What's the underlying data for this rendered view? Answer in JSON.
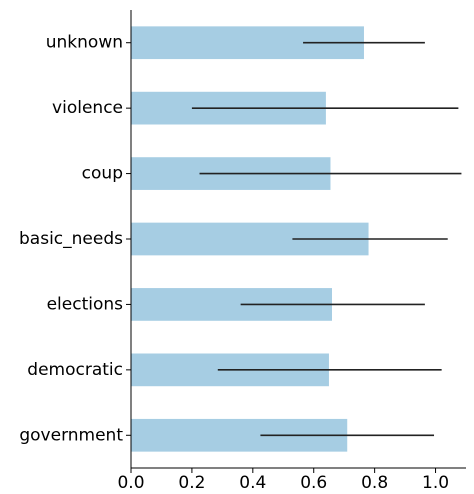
{
  "chart_data": {
    "type": "bar",
    "orientation": "horizontal",
    "categories": [
      "unknown",
      "violence",
      "coup",
      "basic_needs",
      "elections",
      "democratic",
      "government"
    ],
    "values": [
      0.765,
      0.64,
      0.655,
      0.78,
      0.66,
      0.65,
      0.71
    ],
    "error_ranges": [
      [
        0.565,
        0.965
      ],
      [
        0.2,
        1.075
      ],
      [
        0.225,
        1.085
      ],
      [
        0.53,
        1.04
      ],
      [
        0.36,
        0.965
      ],
      [
        0.285,
        1.02
      ],
      [
        0.425,
        0.995
      ]
    ],
    "title": "",
    "xlabel": "",
    "ylabel": "",
    "xlim": [
      0.0,
      1.1
    ],
    "xticks": [
      0.0,
      0.2,
      0.4,
      0.6,
      0.8,
      1.0
    ],
    "xtick_labels": [
      "0.0",
      "0.2",
      "0.4",
      "0.6",
      "0.8",
      "1.0"
    ],
    "grid": false,
    "legend": "none",
    "bar_color": "#a6cde3",
    "error_color": "#222222",
    "axis_color": "#000000"
  }
}
